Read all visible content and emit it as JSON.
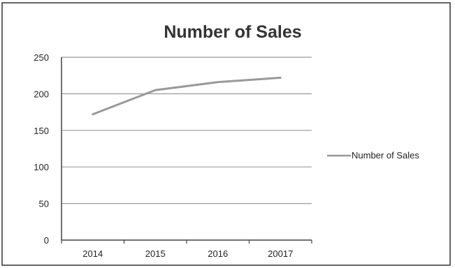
{
  "chart_data": {
    "type": "line",
    "title": "Number of Sales",
    "categories": [
      "2014",
      "2015",
      "2016",
      "20017"
    ],
    "series": [
      {
        "name": "Number of Sales",
        "values": [
          172,
          205,
          216,
          222
        ]
      }
    ],
    "yticks": [
      "0",
      "50",
      "100",
      "150",
      "200",
      "250"
    ],
    "ylim": [
      0,
      250
    ],
    "grid": true,
    "legend": "right",
    "colors": {
      "line": "#999999",
      "grid": "#9a9a9a",
      "axis": "#444444",
      "border": "#333333"
    }
  }
}
